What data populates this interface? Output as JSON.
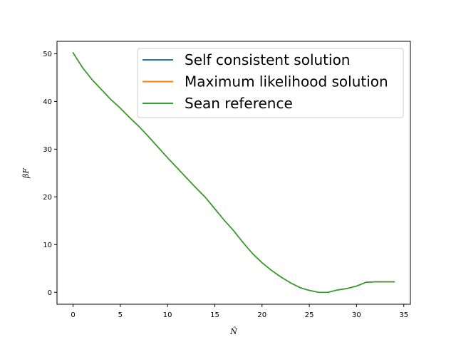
{
  "chart_data": {
    "type": "line",
    "title": "",
    "xlabel": "Ñ",
    "ylabel": "βF",
    "xlim": [
      -1.7,
      35.7
    ],
    "ylim": [
      -2.5,
      52.6
    ],
    "xticks": [
      0,
      5,
      10,
      15,
      20,
      25,
      30,
      35
    ],
    "yticks": [
      0,
      10,
      20,
      30,
      40,
      50
    ],
    "grid": false,
    "legend_position": "upper right",
    "x": [
      0,
      1,
      2,
      3,
      4,
      5,
      6,
      7,
      8,
      9,
      10,
      11,
      12,
      13,
      14,
      15,
      16,
      17,
      18,
      19,
      20,
      21,
      22,
      23,
      24,
      25,
      26,
      27,
      28,
      29,
      30,
      31,
      32,
      33,
      34
    ],
    "series": [
      {
        "name": "Self consistent solution",
        "color": "#1f77b4",
        "values": [
          50.2,
          47.1,
          44.6,
          42.5,
          40.4,
          38.6,
          36.6,
          34.7,
          32.6,
          30.4,
          28.2,
          26.1,
          24.0,
          21.9,
          19.9,
          17.5,
          15.1,
          12.9,
          10.4,
          8.1,
          6.2,
          4.6,
          3.2,
          2.0,
          1.0,
          0.4,
          0.0,
          0.0,
          0.5,
          0.8,
          1.3,
          2.1,
          2.2,
          2.2,
          2.2
        ]
      },
      {
        "name": "Maximum likelihood solution",
        "color": "#ff7f0e",
        "values": [
          50.2,
          47.1,
          44.6,
          42.5,
          40.4,
          38.6,
          36.6,
          34.7,
          32.6,
          30.4,
          28.2,
          26.1,
          24.0,
          21.9,
          19.9,
          17.5,
          15.1,
          12.9,
          10.4,
          8.1,
          6.2,
          4.6,
          3.2,
          2.0,
          1.0,
          0.4,
          0.0,
          0.0,
          0.5,
          0.8,
          1.3,
          2.1,
          2.2,
          2.2,
          2.2
        ]
      },
      {
        "name": "Sean reference",
        "color": "#2ca02c",
        "values": [
          50.2,
          47.1,
          44.6,
          42.5,
          40.4,
          38.6,
          36.6,
          34.7,
          32.6,
          30.4,
          28.2,
          26.1,
          24.0,
          21.9,
          19.9,
          17.5,
          15.1,
          12.9,
          10.4,
          8.1,
          6.2,
          4.6,
          3.2,
          2.0,
          1.0,
          0.4,
          0.0,
          0.0,
          0.5,
          0.8,
          1.3,
          2.1,
          2.2,
          2.2,
          2.2
        ]
      }
    ]
  }
}
